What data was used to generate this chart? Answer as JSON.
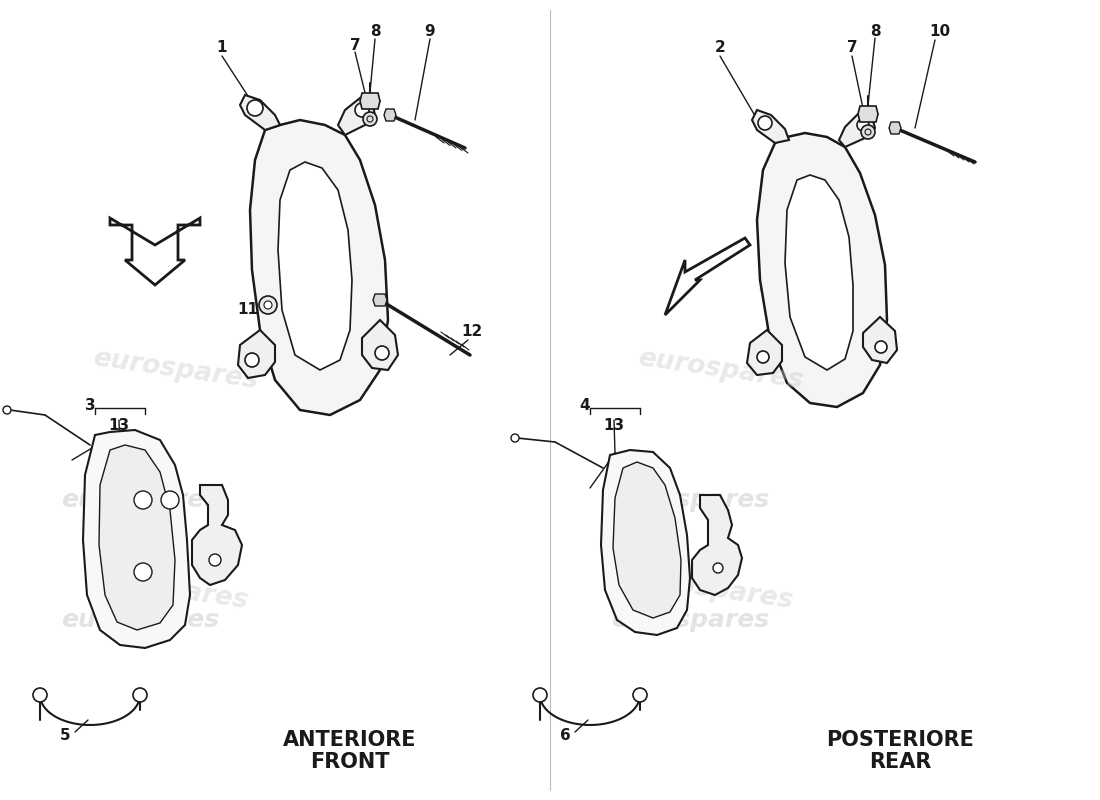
{
  "bg_color": "#ffffff",
  "line_color": "#1a1a1a",
  "watermark_color": "#c8c8c8",
  "watermark_text": "eurospares",
  "left_label_line1": "ANTERIORE",
  "left_label_line2": "FRONT",
  "right_label_line1": "POSTERIORE",
  "right_label_line2": "REAR",
  "label_fontsize": 15,
  "part_label_fontsize": 11,
  "figsize": [
    11.0,
    8.0
  ],
  "dpi": 100,
  "lw_main": 1.5,
  "lw_thin": 1.0,
  "lw_thick": 2.5
}
